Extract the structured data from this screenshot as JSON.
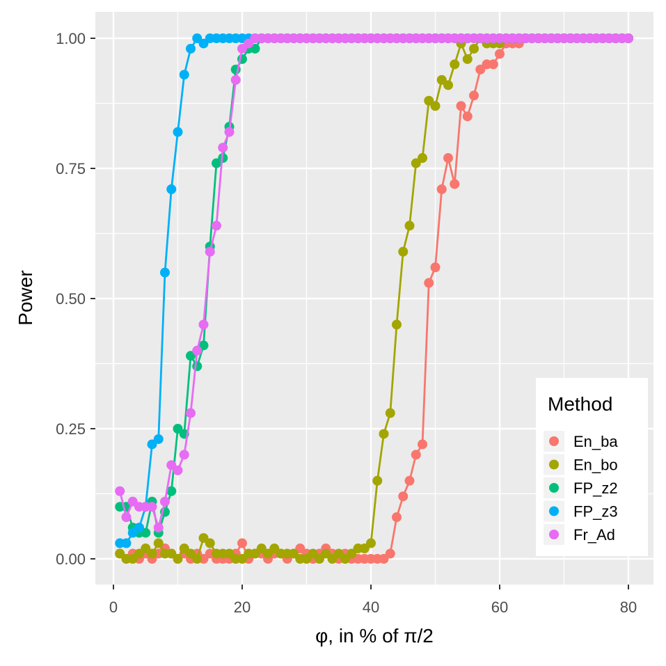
{
  "chart_data": {
    "type": "line",
    "title": "",
    "xlabel": "φ, in % of π/2",
    "ylabel": "Power",
    "xlim": [
      -3,
      84
    ],
    "ylim": [
      -0.05,
      1.05
    ],
    "x_ticks": [
      0,
      20,
      40,
      60,
      80
    ],
    "x_tick_labels": [
      "0",
      "20",
      "40",
      "60",
      "80"
    ],
    "y_ticks": [
      0,
      0.25,
      0.5,
      0.75,
      1.0
    ],
    "y_tick_labels": [
      "0.00",
      "0.25",
      "0.50",
      "0.75",
      "1.00"
    ],
    "x_minor_ticks": [
      10,
      30,
      50,
      70
    ],
    "y_minor_ticks": [
      0.125,
      0.375,
      0.625,
      0.875
    ],
    "grid": true,
    "background": "#ebebeb",
    "legend": {
      "title": "Method",
      "position": "bottom-right"
    },
    "series": [
      {
        "name": "En_ba",
        "color": "#F8766D",
        "x": [
          1,
          2,
          3,
          4,
          5,
          6,
          7,
          8,
          9,
          10,
          11,
          12,
          13,
          14,
          15,
          16,
          17,
          18,
          19,
          20,
          21,
          22,
          23,
          24,
          25,
          26,
          27,
          28,
          29,
          30,
          31,
          32,
          33,
          34,
          35,
          36,
          37,
          38,
          39,
          40,
          41,
          42,
          43,
          44,
          45,
          46,
          47,
          48,
          49,
          50,
          51,
          52,
          53,
          54,
          55,
          56,
          57,
          58,
          59,
          60,
          61,
          62,
          63,
          64,
          65,
          66,
          67,
          68,
          69,
          70,
          71,
          72,
          73,
          74,
          75,
          76,
          77,
          78,
          79,
          80
        ],
        "values": [
          0.01,
          0,
          0.01,
          0,
          0.01,
          0,
          0.01,
          0.02,
          0.01,
          0,
          0.01,
          0,
          0.01,
          0,
          0.01,
          0,
          0,
          0,
          0.01,
          0.03,
          0,
          0.01,
          0.01,
          0,
          0.01,
          0.01,
          0,
          0.01,
          0.02,
          0.01,
          0,
          0.01,
          0.02,
          0.01,
          0,
          0.01,
          0,
          0,
          0,
          0,
          0,
          0,
          0.01,
          0.08,
          0.12,
          0.15,
          0.2,
          0.22,
          0.53,
          0.56,
          0.71,
          0.77,
          0.72,
          0.87,
          0.85,
          0.89,
          0.94,
          0.95,
          0.95,
          0.97,
          0.99,
          0.99,
          0.99,
          1,
          1,
          1,
          1,
          1,
          1,
          1,
          1,
          1,
          1,
          1,
          1,
          1,
          1,
          1,
          1,
          1
        ]
      },
      {
        "name": "En_bo",
        "color": "#A3A500",
        "x": [
          1,
          2,
          3,
          4,
          5,
          6,
          7,
          8,
          9,
          10,
          11,
          12,
          13,
          14,
          15,
          16,
          17,
          18,
          19,
          20,
          21,
          22,
          23,
          24,
          25,
          26,
          27,
          28,
          29,
          30,
          31,
          32,
          33,
          34,
          35,
          36,
          37,
          38,
          39,
          40,
          41,
          42,
          43,
          44,
          45,
          46,
          47,
          48,
          49,
          50,
          51,
          52,
          53,
          54,
          55,
          56,
          57,
          58,
          59,
          60,
          61,
          62,
          63,
          64,
          65,
          66,
          67,
          68,
          69,
          70,
          71,
          72,
          73,
          74,
          75,
          76,
          77,
          78,
          79,
          80
        ],
        "values": [
          0.01,
          0,
          0,
          0.01,
          0.02,
          0.01,
          0.03,
          0.01,
          0.01,
          0,
          0.02,
          0.01,
          0,
          0.04,
          0.03,
          0.01,
          0.01,
          0.01,
          0,
          0,
          0.01,
          0.01,
          0.02,
          0.01,
          0.02,
          0.01,
          0.01,
          0.01,
          0,
          0,
          0.01,
          0,
          0.01,
          0,
          0.01,
          0,
          0.01,
          0.02,
          0.02,
          0.03,
          0.15,
          0.24,
          0.28,
          0.45,
          0.59,
          0.64,
          0.76,
          0.77,
          0.88,
          0.87,
          0.92,
          0.91,
          0.95,
          0.99,
          0.96,
          0.98,
          1,
          0.99,
          0.99,
          0.99,
          1,
          1,
          1,
          1,
          1,
          1,
          1,
          1,
          1,
          1,
          1,
          1,
          1,
          1,
          1,
          1,
          1,
          1,
          1,
          1
        ]
      },
      {
        "name": "FP_z2",
        "color": "#00BF7D",
        "x": [
          1,
          2,
          3,
          4,
          5,
          6,
          7,
          8,
          9,
          10,
          11,
          12,
          13,
          14,
          15,
          16,
          17,
          18,
          19,
          20,
          21,
          22,
          23,
          24,
          25,
          26,
          27,
          28,
          29,
          30,
          31,
          32,
          33,
          34,
          35,
          36,
          37,
          38,
          39,
          40,
          41,
          42,
          43,
          44,
          45,
          46,
          47,
          48,
          49,
          50,
          51,
          52,
          53,
          54,
          55,
          56,
          57,
          58,
          59,
          60,
          61,
          62,
          63,
          64,
          65,
          66,
          67,
          68,
          69,
          70,
          71,
          72,
          73,
          74,
          75,
          76,
          77,
          78,
          79,
          80
        ],
        "values": [
          0.1,
          0.1,
          0.06,
          0.05,
          0.05,
          0.11,
          0.05,
          0.09,
          0.13,
          0.25,
          0.24,
          0.39,
          0.37,
          0.41,
          0.6,
          0.76,
          0.77,
          0.83,
          0.94,
          0.96,
          0.98,
          0.98,
          1,
          1,
          1,
          1,
          1,
          1,
          1,
          1,
          1,
          1,
          1,
          1,
          1,
          1,
          1,
          1,
          1,
          1,
          1,
          1,
          1,
          1,
          1,
          1,
          1,
          1,
          1,
          1,
          1,
          1,
          1,
          1,
          1,
          1,
          1,
          1,
          1,
          1,
          1,
          1,
          1,
          1,
          1,
          1,
          1,
          1,
          1,
          1,
          1,
          1,
          1,
          1,
          1,
          1,
          1,
          1,
          1,
          1
        ]
      },
      {
        "name": "FP_z3",
        "color": "#00B0F6",
        "x": [
          1,
          2,
          3,
          4,
          5,
          6,
          7,
          8,
          9,
          10,
          11,
          12,
          13,
          14,
          15,
          16,
          17,
          18,
          19,
          20,
          21,
          22,
          23,
          24,
          25,
          26,
          27,
          28,
          29,
          30,
          31,
          32,
          33,
          34,
          35,
          36,
          37,
          38,
          39,
          40,
          41,
          42,
          43,
          44,
          45,
          46,
          47,
          48,
          49,
          50,
          51,
          52,
          53,
          54,
          55,
          56,
          57,
          58,
          59,
          60,
          61,
          62,
          63,
          64,
          65,
          66,
          67,
          68,
          69,
          70,
          71,
          72,
          73,
          74,
          75,
          76,
          77,
          78,
          79,
          80
        ],
        "values": [
          0.03,
          0.03,
          0.05,
          0.06,
          0.1,
          0.22,
          0.23,
          0.55,
          0.71,
          0.82,
          0.93,
          0.98,
          1,
          0.99,
          1,
          1,
          1,
          1,
          1,
          1,
          1,
          1,
          1,
          1,
          1,
          1,
          1,
          1,
          1,
          1,
          1,
          1,
          1,
          1,
          1,
          1,
          1,
          1,
          1,
          1,
          1,
          1,
          1,
          1,
          1,
          1,
          1,
          1,
          1,
          1,
          1,
          1,
          1,
          1,
          1,
          1,
          1,
          1,
          1,
          1,
          1,
          1,
          1,
          1,
          1,
          1,
          1,
          1,
          1,
          1,
          1,
          1,
          1,
          1,
          1,
          1,
          1,
          1,
          1,
          1
        ]
      },
      {
        "name": "Fr_Ad",
        "color": "#E76BF3",
        "x": [
          1,
          2,
          3,
          4,
          5,
          6,
          7,
          8,
          9,
          10,
          11,
          12,
          13,
          14,
          15,
          16,
          17,
          18,
          19,
          20,
          21,
          22,
          23,
          24,
          25,
          26,
          27,
          28,
          29,
          30,
          31,
          32,
          33,
          34,
          35,
          36,
          37,
          38,
          39,
          40,
          41,
          42,
          43,
          44,
          45,
          46,
          47,
          48,
          49,
          50,
          51,
          52,
          53,
          54,
          55,
          56,
          57,
          58,
          59,
          60,
          61,
          62,
          63,
          64,
          65,
          66,
          67,
          68,
          69,
          70,
          71,
          72,
          73,
          74,
          75,
          76,
          77,
          78,
          79,
          80
        ],
        "values": [
          0.13,
          0.08,
          0.11,
          0.1,
          0.1,
          0.1,
          0.06,
          0.11,
          0.18,
          0.17,
          0.2,
          0.28,
          0.4,
          0.45,
          0.59,
          0.64,
          0.79,
          0.82,
          0.92,
          0.98,
          0.99,
          1,
          1,
          1,
          1,
          1,
          1,
          1,
          1,
          1,
          1,
          1,
          1,
          1,
          1,
          1,
          1,
          1,
          1,
          1,
          1,
          1,
          1,
          1,
          1,
          1,
          1,
          1,
          1,
          1,
          1,
          1,
          1,
          1,
          1,
          1,
          1,
          1,
          1,
          1,
          1,
          1,
          1,
          1,
          1,
          1,
          1,
          1,
          1,
          1,
          1,
          1,
          1,
          1,
          1,
          1,
          1,
          1,
          1,
          1
        ]
      }
    ]
  }
}
